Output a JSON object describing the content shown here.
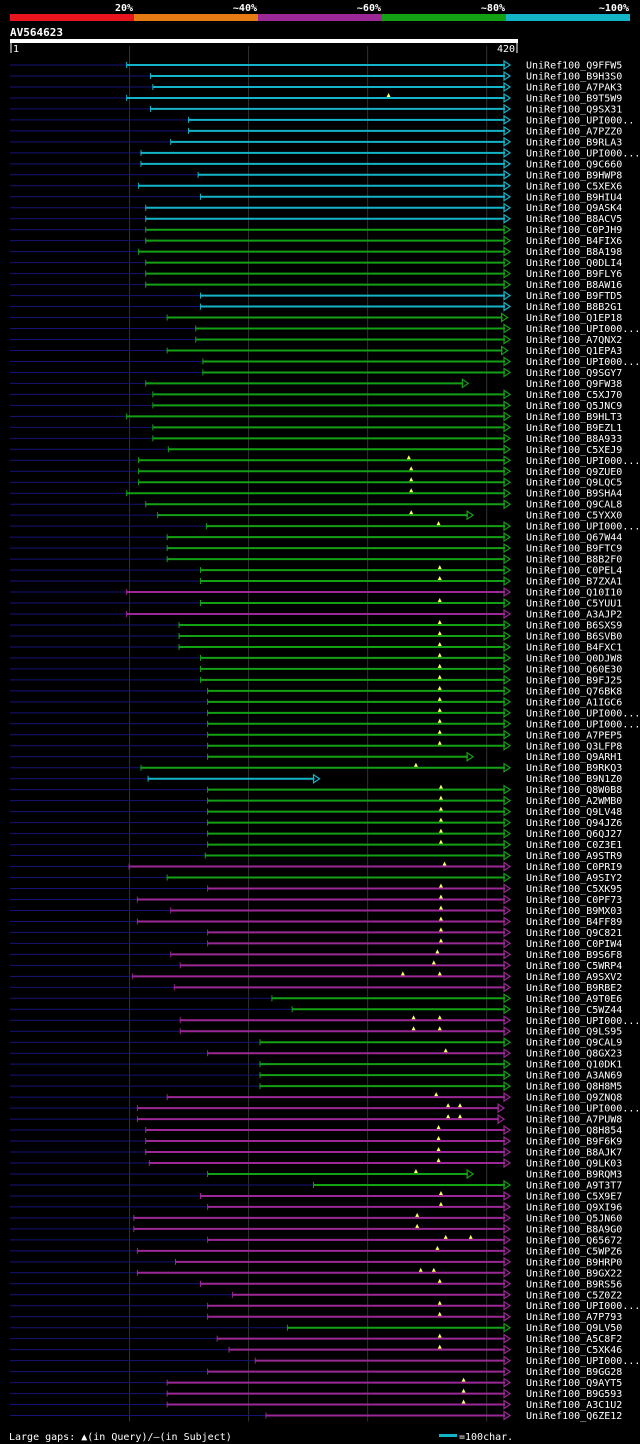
{
  "legend": {
    "scale": [
      {
        "label": "20%",
        "color": "#e8141e"
      },
      {
        "label": "~40%",
        "color": "#e87a14"
      },
      {
        "label": "~60%",
        "color": "#9b2896"
      },
      {
        "label": "~80%",
        "color": "#14a014"
      },
      {
        "label": "~100%",
        "color": "#14b4c8"
      }
    ]
  },
  "query": {
    "name": "AV564623",
    "start_label": "1",
    "end_label": "420",
    "length": 420
  },
  "footer": {
    "gaps_text": "Large gaps: ▲(in Query)/—(in Subject)",
    "scale_text": "=100char."
  },
  "colors": {
    "cyan": "#14b4c8",
    "green": "#14a014",
    "purple": "#9b2896",
    "tail": "#141478",
    "grid": "#323232"
  },
  "chart_data": {
    "type": "alignment",
    "scale_units": 420,
    "grid_at": [
      100,
      200,
      300,
      400
    ],
    "hits": [
      {
        "id": "UniRef100_Q9FFW5",
        "s": 98,
        "e": 420,
        "c": "cyan",
        "a": []
      },
      {
        "id": "UniRef100_B9H3S0",
        "s": 118,
        "e": 420,
        "c": "cyan",
        "a": []
      },
      {
        "id": "UniRef100_A7PAK3",
        "s": 120,
        "e": 420,
        "c": "cyan",
        "a": []
      },
      {
        "id": "UniRef100_B9T5W9",
        "s": 98,
        "e": 420,
        "c": "cyan",
        "a": [
          318
        ]
      },
      {
        "id": "UniRef100_Q9SX31",
        "s": 118,
        "e": 420,
        "c": "cyan",
        "a": []
      },
      {
        "id": "UniRef100_UPI000..",
        "s": 150,
        "e": 420,
        "c": "cyan",
        "a": []
      },
      {
        "id": "UniRef100_A7PZZ0",
        "s": 150,
        "e": 420,
        "c": "cyan",
        "a": []
      },
      {
        "id": "UniRef100_B9RLA3",
        "s": 135,
        "e": 420,
        "c": "cyan",
        "a": []
      },
      {
        "id": "UniRef100_UPI000...",
        "s": 110,
        "e": 420,
        "c": "cyan",
        "a": []
      },
      {
        "id": "UniRef100_Q9C660",
        "s": 110,
        "e": 420,
        "c": "cyan",
        "a": []
      },
      {
        "id": "UniRef100_B9HWP8",
        "s": 158,
        "e": 420,
        "c": "cyan",
        "a": []
      },
      {
        "id": "UniRef100_C5XEX6",
        "s": 108,
        "e": 420,
        "c": "cyan",
        "a": []
      },
      {
        "id": "UniRef100_B9HIU4",
        "s": 160,
        "e": 420,
        "c": "cyan",
        "a": []
      },
      {
        "id": "UniRef100_Q9ASK4",
        "s": 114,
        "e": 420,
        "c": "cyan",
        "a": []
      },
      {
        "id": "UniRef100_B8ACV5",
        "s": 114,
        "e": 420,
        "c": "cyan",
        "a": []
      },
      {
        "id": "UniRef100_C0PJH9",
        "s": 114,
        "e": 420,
        "c": "green",
        "a": []
      },
      {
        "id": "UniRef100_B4FIX6",
        "s": 114,
        "e": 420,
        "c": "green",
        "a": []
      },
      {
        "id": "UniRef100_B8A198",
        "s": 108,
        "e": 420,
        "c": "green",
        "a": []
      },
      {
        "id": "UniRef100_Q0DLI4",
        "s": 114,
        "e": 420,
        "c": "green",
        "a": []
      },
      {
        "id": "UniRef100_B9FLY6",
        "s": 114,
        "e": 420,
        "c": "green",
        "a": []
      },
      {
        "id": "UniRef100_B8AW16",
        "s": 114,
        "e": 420,
        "c": "green",
        "a": []
      },
      {
        "id": "UniRef100_B9FTD5",
        "s": 160,
        "e": 420,
        "c": "cyan",
        "a": []
      },
      {
        "id": "UniRef100_B8B2G1",
        "s": 160,
        "e": 420,
        "c": "cyan",
        "a": []
      },
      {
        "id": "UniRef100_Q1EP18",
        "s": 132,
        "e": 418,
        "c": "green",
        "a": []
      },
      {
        "id": "UniRef100_UPI000...",
        "s": 156,
        "e": 420,
        "c": "green",
        "a": []
      },
      {
        "id": "UniRef100_A7QNX2",
        "s": 156,
        "e": 420,
        "c": "green",
        "a": []
      },
      {
        "id": "UniRef100_Q1EPA3",
        "s": 132,
        "e": 418,
        "c": "green",
        "a": []
      },
      {
        "id": "UniRef100_UPI000...",
        "s": 162,
        "e": 420,
        "c": "green",
        "a": []
      },
      {
        "id": "UniRef100_Q9SGY7",
        "s": 162,
        "e": 420,
        "c": "green",
        "a": []
      },
      {
        "id": "UniRef100_Q9FW38",
        "s": 114,
        "e": 385,
        "c": "green",
        "a": []
      },
      {
        "id": "UniRef100_C5XJ70",
        "s": 120,
        "e": 420,
        "c": "green",
        "a": []
      },
      {
        "id": "UniRef100_Q5JNC9",
        "s": 120,
        "e": 420,
        "c": "green",
        "a": []
      },
      {
        "id": "UniRef100_B9HLT3",
        "s": 98,
        "e": 420,
        "c": "green",
        "a": []
      },
      {
        "id": "UniRef100_B9EZL1",
        "s": 120,
        "e": 420,
        "c": "green",
        "a": []
      },
      {
        "id": "UniRef100_B8A933",
        "s": 120,
        "e": 420,
        "c": "green",
        "a": []
      },
      {
        "id": "UniRef100_C5XEJ9",
        "s": 133,
        "e": 420,
        "c": "green",
        "a": []
      },
      {
        "id": "UniRef100_UPI000...",
        "s": 108,
        "e": 420,
        "c": "green",
        "a": [
          335
        ]
      },
      {
        "id": "UniRef100_Q9ZUE0",
        "s": 108,
        "e": 420,
        "c": "green",
        "a": [
          337
        ]
      },
      {
        "id": "UniRef100_Q9LQC5",
        "s": 108,
        "e": 420,
        "c": "green",
        "a": [
          337
        ]
      },
      {
        "id": "UniRef100_B9SHA4",
        "s": 98,
        "e": 420,
        "c": "green",
        "a": [
          337
        ]
      },
      {
        "id": "UniRef100_Q9CAL8",
        "s": 114,
        "e": 420,
        "c": "green",
        "a": []
      },
      {
        "id": "UniRef100_C5YXX0",
        "s": 124,
        "e": 389,
        "c": "green",
        "a": [
          337
        ]
      },
      {
        "id": "UniRef100_UPI000...",
        "s": 165,
        "e": 420,
        "c": "green",
        "a": [
          360
        ]
      },
      {
        "id": "UniRef100_Q67W44",
        "s": 132,
        "e": 420,
        "c": "green",
        "a": []
      },
      {
        "id": "UniRef100_B9FTC9",
        "s": 132,
        "e": 420,
        "c": "green",
        "a": []
      },
      {
        "id": "UniRef100_B8B2F0",
        "s": 132,
        "e": 420,
        "c": "green",
        "a": []
      },
      {
        "id": "UniRef100_C0PEL4",
        "s": 160,
        "e": 420,
        "c": "green",
        "a": [
          361
        ]
      },
      {
        "id": "UniRef100_B7ZXA1",
        "s": 160,
        "e": 420,
        "c": "green",
        "a": [
          361
        ]
      },
      {
        "id": "UniRef100_Q10I10",
        "s": 98,
        "e": 420,
        "c": "purple",
        "a": []
      },
      {
        "id": "UniRef100_C5YUU1",
        "s": 160,
        "e": 420,
        "c": "green",
        "a": [
          361
        ]
      },
      {
        "id": "UniRef100_A3AJP2",
        "s": 98,
        "e": 420,
        "c": "purple",
        "a": []
      },
      {
        "id": "UniRef100_B6SXS9",
        "s": 142,
        "e": 420,
        "c": "green",
        "a": [
          361
        ]
      },
      {
        "id": "UniRef100_B6SVB0",
        "s": 142,
        "e": 420,
        "c": "green",
        "a": [
          361
        ]
      },
      {
        "id": "UniRef100_B4FXC1",
        "s": 142,
        "e": 420,
        "c": "green",
        "a": [
          361
        ]
      },
      {
        "id": "UniRef100_Q0DJW8",
        "s": 160,
        "e": 420,
        "c": "green",
        "a": [
          361
        ]
      },
      {
        "id": "UniRef100_Q60E30",
        "s": 160,
        "e": 420,
        "c": "green",
        "a": [
          361
        ]
      },
      {
        "id": "UniRef100_B9FJ25",
        "s": 160,
        "e": 420,
        "c": "green",
        "a": [
          361
        ]
      },
      {
        "id": "UniRef100_Q76BK8",
        "s": 166,
        "e": 420,
        "c": "green",
        "a": [
          361
        ]
      },
      {
        "id": "UniRef100_A1IGC6",
        "s": 166,
        "e": 420,
        "c": "green",
        "a": [
          361
        ]
      },
      {
        "id": "UniRef100_UPI000...",
        "s": 166,
        "e": 420,
        "c": "green",
        "a": [
          361
        ]
      },
      {
        "id": "UniRef100_UPI000...",
        "s": 166,
        "e": 420,
        "c": "green",
        "a": [
          361
        ]
      },
      {
        "id": "UniRef100_A7PEP5",
        "s": 166,
        "e": 420,
        "c": "green",
        "a": [
          361
        ]
      },
      {
        "id": "UniRef100_Q3LFP8",
        "s": 166,
        "e": 420,
        "c": "green",
        "a": [
          361
        ]
      },
      {
        "id": "UniRef100_Q9ARH1",
        "s": 166,
        "e": 389,
        "c": "green",
        "a": []
      },
      {
        "id": "UniRef100_B9RKQ3",
        "s": 110,
        "e": 420,
        "c": "green",
        "a": [
          341
        ]
      },
      {
        "id": "UniRef100_B9N1Z0",
        "s": 116,
        "e": 260,
        "c": "cyan",
        "a": []
      },
      {
        "id": "UniRef100_Q8W0B8",
        "s": 166,
        "e": 420,
        "c": "green",
        "a": [
          362
        ]
      },
      {
        "id": "UniRef100_A2WMB0",
        "s": 166,
        "e": 420,
        "c": "green",
        "a": [
          362
        ]
      },
      {
        "id": "UniRef100_Q9LV48",
        "s": 166,
        "e": 420,
        "c": "green",
        "a": [
          362
        ]
      },
      {
        "id": "UniRef100_Q94JZ6",
        "s": 166,
        "e": 420,
        "c": "green",
        "a": [
          362
        ]
      },
      {
        "id": "UniRef100_Q6QJ27",
        "s": 166,
        "e": 420,
        "c": "green",
        "a": [
          362
        ]
      },
      {
        "id": "UniRef100_C0Z3E1",
        "s": 166,
        "e": 420,
        "c": "green",
        "a": [
          362
        ]
      },
      {
        "id": "UniRef100_A9STR9",
        "s": 164,
        "e": 420,
        "c": "green",
        "a": []
      },
      {
        "id": "UniRef100_C0PRI9",
        "s": 100,
        "e": 420,
        "c": "purple",
        "a": [
          365
        ]
      },
      {
        "id": "UniRef100_A9SIY2",
        "s": 132,
        "e": 420,
        "c": "green",
        "a": []
      },
      {
        "id": "UniRef100_C5XK95",
        "s": 166,
        "e": 420,
        "c": "purple",
        "a": [
          362
        ]
      },
      {
        "id": "UniRef100_C0PF73",
        "s": 107,
        "e": 420,
        "c": "purple",
        "a": [
          362
        ]
      },
      {
        "id": "UniRef100_B9MX03",
        "s": 135,
        "e": 420,
        "c": "purple",
        "a": [
          362
        ]
      },
      {
        "id": "UniRef100_B4FF89",
        "s": 107,
        "e": 420,
        "c": "purple",
        "a": [
          362
        ]
      },
      {
        "id": "UniRef100_Q9C821",
        "s": 166,
        "e": 420,
        "c": "purple",
        "a": [
          362
        ]
      },
      {
        "id": "UniRef100_C0PIW4",
        "s": 166,
        "e": 420,
        "c": "purple",
        "a": [
          362
        ]
      },
      {
        "id": "UniRef100_B9S6F8",
        "s": 135,
        "e": 420,
        "c": "purple",
        "a": [
          359
        ]
      },
      {
        "id": "UniRef100_C5WRP4",
        "s": 143,
        "e": 420,
        "c": "purple",
        "a": [
          356
        ]
      },
      {
        "id": "UniRef100_A9SXV2",
        "s": 103,
        "e": 420,
        "c": "purple",
        "a": [
          330,
          361
        ]
      },
      {
        "id": "UniRef100_B9RBE2",
        "s": 138,
        "e": 420,
        "c": "purple",
        "a": []
      },
      {
        "id": "UniRef100_A9T0E6",
        "s": 220,
        "e": 420,
        "c": "green",
        "a": []
      },
      {
        "id": "UniRef100_C5WZ44",
        "s": 237,
        "e": 420,
        "c": "green",
        "a": []
      },
      {
        "id": "UniRef100_UPI000...",
        "s": 143,
        "e": 420,
        "c": "purple",
        "a": [
          339,
          361
        ]
      },
      {
        "id": "UniRef100_Q9LS95",
        "s": 143,
        "e": 420,
        "c": "purple",
        "a": [
          339,
          361
        ]
      },
      {
        "id": "UniRef100_Q9CAL9",
        "s": 210,
        "e": 420,
        "c": "green",
        "a": []
      },
      {
        "id": "UniRef100_Q8GX23",
        "s": 166,
        "e": 420,
        "c": "purple",
        "a": [
          366
        ]
      },
      {
        "id": "UniRef100_Q10DK1",
        "s": 210,
        "e": 420,
        "c": "green",
        "a": []
      },
      {
        "id": "UniRef100_A3AN69",
        "s": 210,
        "e": 420,
        "c": "green",
        "a": []
      },
      {
        "id": "UniRef100_Q8H8M5",
        "s": 210,
        "e": 420,
        "c": "green",
        "a": []
      },
      {
        "id": "UniRef100_Q9ZNQ8",
        "s": 132,
        "e": 420,
        "c": "purple",
        "a": [
          358
        ]
      },
      {
        "id": "UniRef100_UPI000...",
        "s": 107,
        "e": 415,
        "c": "purple",
        "a": [
          368,
          378
        ]
      },
      {
        "id": "UniRef100_A7PUW8",
        "s": 107,
        "e": 415,
        "c": "purple",
        "a": [
          368,
          378
        ]
      },
      {
        "id": "UniRef100_Q8H854",
        "s": 114,
        "e": 420,
        "c": "purple",
        "a": [
          360
        ]
      },
      {
        "id": "UniRef100_B9F6K9",
        "s": 114,
        "e": 420,
        "c": "purple",
        "a": [
          360
        ]
      },
      {
        "id": "UniRef100_B8AJK7",
        "s": 114,
        "e": 420,
        "c": "purple",
        "a": [
          360
        ]
      },
      {
        "id": "UniRef100_Q9LK03",
        "s": 117,
        "e": 420,
        "c": "purple",
        "a": [
          360
        ]
      },
      {
        "id": "UniRef100_B9RQM3",
        "s": 166,
        "e": 389,
        "c": "green",
        "a": [
          341
        ]
      },
      {
        "id": "UniRef100_A9T3T7",
        "s": 255,
        "e": 420,
        "c": "green",
        "a": []
      },
      {
        "id": "UniRef100_C5X9E7",
        "s": 160,
        "e": 420,
        "c": "purple",
        "a": [
          362
        ]
      },
      {
        "id": "UniRef100_Q9XI96",
        "s": 166,
        "e": 420,
        "c": "purple",
        "a": [
          362
        ]
      },
      {
        "id": "UniRef100_Q5JN60",
        "s": 104,
        "e": 420,
        "c": "purple",
        "a": [
          342
        ]
      },
      {
        "id": "UniRef100_B8A9G0",
        "s": 104,
        "e": 420,
        "c": "purple",
        "a": [
          342
        ]
      },
      {
        "id": "UniRef100_Q65672",
        "s": 166,
        "e": 420,
        "c": "purple",
        "a": [
          366,
          387
        ]
      },
      {
        "id": "UniRef100_C5WPZ6",
        "s": 107,
        "e": 420,
        "c": "purple",
        "a": [
          359
        ]
      },
      {
        "id": "UniRef100_B9HRP0",
        "s": 139,
        "e": 420,
        "c": "purple",
        "a": []
      },
      {
        "id": "UniRef100_B9GX22",
        "s": 107,
        "e": 420,
        "c": "purple",
        "a": [
          345,
          356
        ]
      },
      {
        "id": "UniRef100_B9RS56",
        "s": 160,
        "e": 420,
        "c": "purple",
        "a": [
          361
        ]
      },
      {
        "id": "UniRef100_C5Z0Z2",
        "s": 187,
        "e": 420,
        "c": "purple",
        "a": []
      },
      {
        "id": "UniRef100_UPI000...",
        "s": 166,
        "e": 420,
        "c": "purple",
        "a": [
          361
        ]
      },
      {
        "id": "UniRef100_A7P793",
        "s": 166,
        "e": 420,
        "c": "purple",
        "a": [
          361
        ]
      },
      {
        "id": "UniRef100_Q9LV50",
        "s": 233,
        "e": 420,
        "c": "green",
        "a": []
      },
      {
        "id": "UniRef100_A5C8F2",
        "s": 174,
        "e": 420,
        "c": "purple",
        "a": [
          361
        ]
      },
      {
        "id": "UniRef100_C5XK46",
        "s": 184,
        "e": 420,
        "c": "purple",
        "a": [
          361
        ]
      },
      {
        "id": "UniRef100_UPI000...",
        "s": 206,
        "e": 420,
        "c": "purple",
        "a": []
      },
      {
        "id": "UniRef100_B9GG28",
        "s": 166,
        "e": 420,
        "c": "purple",
        "a": []
      },
      {
        "id": "UniRef100_Q9AYT5",
        "s": 132,
        "e": 420,
        "c": "purple",
        "a": [
          381
        ]
      },
      {
        "id": "UniRef100_B9G593",
        "s": 132,
        "e": 420,
        "c": "purple",
        "a": [
          381
        ]
      },
      {
        "id": "UniRef100_A3C1U2",
        "s": 132,
        "e": 420,
        "c": "purple",
        "a": [
          381
        ]
      },
      {
        "id": "UniRef100_Q6ZE12",
        "s": 215,
        "e": 420,
        "c": "purple",
        "a": []
      }
    ]
  }
}
